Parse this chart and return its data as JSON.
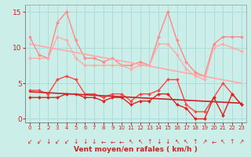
{
  "bg_color": "#cceee8",
  "grid_color": "#aadddd",
  "xlabel": "Vent moyen/en rafales ( km/h )",
  "xlim": [
    -0.5,
    23.5
  ],
  "ylim": [
    -0.5,
    16
  ],
  "yticks": [
    0,
    5,
    10,
    15
  ],
  "xticks": [
    0,
    1,
    2,
    3,
    4,
    5,
    6,
    7,
    8,
    9,
    10,
    11,
    12,
    13,
    14,
    15,
    16,
    17,
    18,
    19,
    20,
    21,
    22,
    23
  ],
  "series": [
    {
      "label": "rafales_light",
      "color": "#ff8888",
      "lw": 1.0,
      "marker": "D",
      "markersize": 2.0,
      "x": [
        0,
        1,
        2,
        3,
        4,
        5,
        6,
        7,
        8,
        9,
        10,
        11,
        12,
        13,
        14,
        15,
        16,
        17,
        18,
        19,
        20,
        21,
        22,
        23
      ],
      "y": [
        11.5,
        9.0,
        8.5,
        13.5,
        15.0,
        11.0,
        8.5,
        8.5,
        8.0,
        8.5,
        7.5,
        7.5,
        8.0,
        7.5,
        11.5,
        15.0,
        11.0,
        8.0,
        6.5,
        6.0,
        10.5,
        11.5,
        11.5,
        11.5
      ]
    },
    {
      "label": "trend_rafales",
      "color": "#ffaaaa",
      "lw": 1.2,
      "marker": null,
      "markersize": 0,
      "x": [
        0,
        23
      ],
      "y": [
        10.5,
        5.0
      ]
    },
    {
      "label": "moyen_light",
      "color": "#ffaaaa",
      "lw": 1.0,
      "marker": "D",
      "markersize": 2.0,
      "x": [
        0,
        1,
        2,
        3,
        4,
        5,
        6,
        7,
        8,
        9,
        10,
        11,
        12,
        13,
        14,
        15,
        16,
        17,
        18,
        19,
        20,
        21,
        22,
        23
      ],
      "y": [
        8.5,
        8.5,
        8.5,
        11.5,
        11.0,
        8.5,
        7.5,
        7.5,
        7.5,
        7.5,
        7.5,
        7.0,
        7.5,
        7.5,
        10.5,
        10.5,
        9.0,
        7.0,
        6.0,
        5.5,
        10.0,
        10.5,
        10.0,
        9.5
      ]
    },
    {
      "label": "rafales_dark",
      "color": "#ff4444",
      "lw": 1.0,
      "marker": "D",
      "markersize": 2.0,
      "x": [
        0,
        1,
        2,
        3,
        4,
        5,
        6,
        7,
        8,
        9,
        10,
        11,
        12,
        13,
        14,
        15,
        16,
        17,
        18,
        19,
        20,
        21,
        22,
        23
      ],
      "y": [
        4.0,
        4.0,
        3.5,
        5.5,
        6.0,
        5.5,
        3.5,
        3.5,
        3.0,
        3.5,
        3.5,
        2.5,
        3.5,
        3.5,
        4.0,
        5.5,
        5.5,
        2.0,
        1.0,
        1.0,
        3.0,
        5.0,
        3.5,
        2.0
      ]
    },
    {
      "label": "trend_moyen",
      "color": "#cc2222",
      "lw": 1.2,
      "marker": null,
      "markersize": 0,
      "x": [
        0,
        23
      ],
      "y": [
        3.8,
        2.2
      ]
    },
    {
      "label": "moyen_dark",
      "color": "#dd2222",
      "lw": 1.0,
      "marker": "D",
      "markersize": 2.0,
      "x": [
        0,
        1,
        2,
        3,
        4,
        5,
        6,
        7,
        8,
        9,
        10,
        11,
        12,
        13,
        14,
        15,
        16,
        17,
        18,
        19,
        20,
        21,
        22,
        23
      ],
      "y": [
        3.0,
        3.0,
        3.0,
        3.0,
        3.5,
        3.5,
        3.0,
        3.0,
        2.5,
        3.0,
        3.0,
        2.0,
        2.5,
        2.5,
        3.5,
        3.5,
        2.0,
        1.5,
        0.0,
        0.0,
        3.0,
        0.5,
        3.5,
        2.0
      ]
    }
  ],
  "arrows": [
    "↙",
    "↙",
    "↓",
    "↙",
    "↙",
    "↓",
    "↓",
    "↓",
    "←",
    "←",
    "←",
    "↖",
    "↖",
    "↑",
    "↓",
    "↓",
    "↖",
    "↖",
    "↑",
    "↗",
    "←",
    "↖",
    "↑",
    "↗"
  ]
}
